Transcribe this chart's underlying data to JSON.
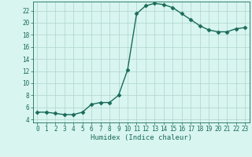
{
  "x": [
    0,
    1,
    2,
    3,
    4,
    5,
    6,
    7,
    8,
    9,
    10,
    11,
    12,
    13,
    14,
    15,
    16,
    17,
    18,
    19,
    20,
    21,
    22,
    23
  ],
  "y": [
    5.2,
    5.2,
    5.0,
    4.8,
    4.8,
    5.2,
    6.5,
    6.8,
    6.8,
    8.0,
    12.2,
    21.5,
    22.8,
    23.2,
    23.0,
    22.5,
    21.5,
    20.5,
    19.5,
    18.8,
    18.5,
    18.5,
    19.0,
    19.2
  ],
  "line_color": "#1a6b5a",
  "marker": "D",
  "markersize": 2.5,
  "bg_color": "#d8f5f0",
  "grid_color": "#aed4cc",
  "xlabel": "Humidex (Indice chaleur)",
  "xlim": [
    -0.5,
    23.5
  ],
  "ylim": [
    3.5,
    23.5
  ],
  "yticks": [
    4,
    6,
    8,
    10,
    12,
    14,
    16,
    18,
    20,
    22
  ],
  "xticks": [
    0,
    1,
    2,
    3,
    4,
    5,
    6,
    7,
    8,
    9,
    10,
    11,
    12,
    13,
    14,
    15,
    16,
    17,
    18,
    19,
    20,
    21,
    22,
    23
  ],
  "tick_fontsize": 5.5,
  "xlabel_fontsize": 6.5,
  "linewidth": 1.0
}
